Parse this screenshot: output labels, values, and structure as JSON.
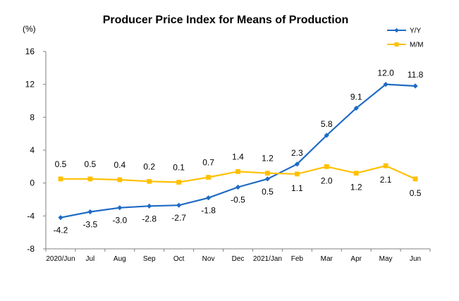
{
  "chart_data": {
    "type": "line",
    "title": "Producer Price Index for Means of Production",
    "ylabel": "(%)",
    "xlabel": "",
    "ylim": [
      -8,
      16
    ],
    "yticks": [
      -8,
      -4,
      0,
      4,
      8,
      12,
      16
    ],
    "categories": [
      "2020/Jun",
      "Jul",
      "Aug",
      "Sep",
      "Oct",
      "Nov",
      "Dec",
      "2021/Jan",
      "Feb",
      "Mar",
      "Apr",
      "May",
      "Jun"
    ],
    "legend_position": "top-right",
    "grid": false,
    "series": [
      {
        "name": "Y/Y",
        "color": "#1F6BC4",
        "marker": "diamond",
        "values": [
          -4.2,
          -3.5,
          -3.0,
          -2.8,
          -2.7,
          -1.8,
          -0.5,
          0.5,
          2.3,
          5.8,
          9.1,
          12.0,
          11.8
        ],
        "labels": [
          "-4.2",
          "-3.5",
          "-3.0",
          "-2.8",
          "-2.7",
          "-1.8",
          "-0.5",
          "0.5",
          "2.3",
          "5.8",
          "9.1",
          "12.0",
          "11.8"
        ]
      },
      {
        "name": "M/M",
        "color": "#FFC000",
        "marker": "square",
        "values": [
          0.5,
          0.5,
          0.4,
          0.2,
          0.1,
          0.7,
          1.4,
          1.2,
          1.1,
          2.0,
          1.2,
          2.1,
          0.5
        ],
        "labels": [
          "0.5",
          "0.5",
          "0.4",
          "0.2",
          "0.1",
          "0.7",
          "1.4",
          "1.2",
          "1.1",
          "2.0",
          "1.2",
          "2.1",
          "0.5"
        ]
      }
    ]
  }
}
